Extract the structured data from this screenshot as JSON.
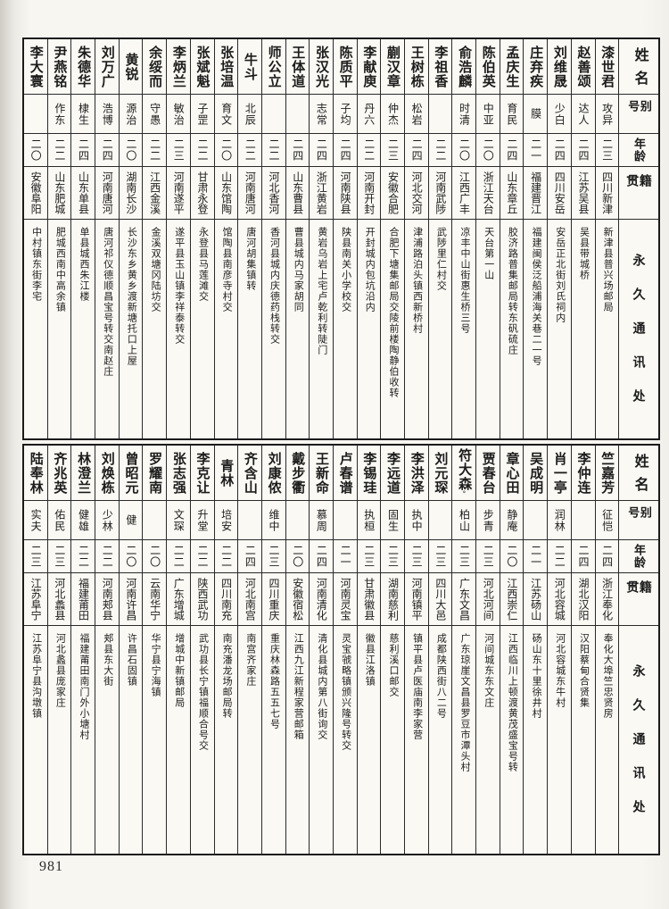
{
  "page_number": "981",
  "colors": {
    "ink": "#1b1b1b",
    "paper": "#f7f6f1"
  },
  "headers": {
    "name": "姓名",
    "alias": "别号",
    "age": "年龄",
    "native_place": "籍贯",
    "address": "永久通讯处"
  },
  "tables": [
    {
      "people": [
        {
          "name": "漆世君",
          "alias": "攻异",
          "age": "二三",
          "native_place": "四川新津",
          "address": "新津县普兴场邮局"
        },
        {
          "name": "赵善颂",
          "alias": "达人",
          "age": "二四",
          "native_place": "江苏吴县",
          "address": "吴县带城桥"
        },
        {
          "name": "刘维晟",
          "alias": "少白",
          "age": "二四",
          "native_place": "四川安岳",
          "address": "安岳正北街刘氏祠内"
        },
        {
          "name": "庄弃疾",
          "alias": "膜",
          "age": "二一",
          "native_place": "福建晋江",
          "address": "福建闽侯泛船浦海关巷二一号"
        },
        {
          "name": "孟庆生",
          "alias": "育民",
          "age": "二四",
          "native_place": "山东章丘",
          "address": "胶济路普集邮局转东矾硫庄"
        },
        {
          "name": "陈伯英",
          "alias": "中亚",
          "age": "二〇",
          "native_place": "浙江天台",
          "address": "天台第一山"
        },
        {
          "name": "俞浩麟",
          "alias": "时清",
          "age": "二〇",
          "native_place": "江西广丰",
          "address": "凉丰中山街惠生桥三号"
        },
        {
          "name": "李祖香",
          "alias": "",
          "age": "二二",
          "native_place": "河南武陟",
          "address": "武陟里仁村交"
        },
        {
          "name": "王树栋",
          "alias": "松岩",
          "age": "二四",
          "native_place": "河北交河",
          "address": "津浦路泊头镇西新桥村"
        },
        {
          "name": "蒯汉章",
          "alias": "仲杰",
          "age": "二三",
          "native_place": "安徽合肥",
          "address": "合肥下塘集邮局交陵前楼陶静伯收转"
        },
        {
          "name": "李献庾",
          "alias": "丹六",
          "age": "二二",
          "native_place": "河南开封",
          "address": "开封城内包坑沿内"
        },
        {
          "name": "陈质平",
          "alias": "子均",
          "age": "二四",
          "native_place": "河南陕县",
          "address": "陕县南关小学校交"
        },
        {
          "name": "张汉光",
          "alias": "志常",
          "age": "二四",
          "native_place": "浙江黄岩",
          "address": "黄岩乌岩上宅卢乾利转陡门"
        },
        {
          "name": "王体道",
          "alias": "",
          "age": "二四",
          "native_place": "山东曹县",
          "address": "曹县城内马家胡同"
        },
        {
          "name": "师公立",
          "alias": "",
          "age": "二二",
          "native_place": "河北香河",
          "address": "香河县城内庆德药栈转交"
        },
        {
          "name": "牛斗",
          "alias": "北辰",
          "age": "二二",
          "native_place": "河南唐河",
          "address": "唐河胡集镇转"
        },
        {
          "name": "张培温",
          "alias": "育文",
          "age": "二〇",
          "native_place": "山东馆陶",
          "address": "馆陶县南彦寺村交"
        },
        {
          "name": "张斌魁",
          "alias": "子罡",
          "age": "二二",
          "native_place": "甘肃永登",
          "address": "永登县马莲滩交"
        },
        {
          "name": "李炳兰",
          "alias": "敏治",
          "age": "二三",
          "native_place": "河南遂平",
          "address": "遂平县玉山镇李祥泰转交"
        },
        {
          "name": "余绥而",
          "alias": "守愚",
          "age": "二二",
          "native_place": "江西金溪",
          "address": "金溪双塘冈陆坊交"
        },
        {
          "name": "黄锐",
          "alias": "源治",
          "age": "二〇",
          "native_place": "湖南长沙",
          "address": "长沙东乡黄乡渡新塘托口上屋"
        },
        {
          "name": "刘万广",
          "alias": "浩博",
          "age": "二四",
          "native_place": "河南唐河",
          "address": "唐河祁仪德顺昌宝号转交南赵庄"
        },
        {
          "name": "朱德华",
          "alias": "棣生",
          "age": "二四",
          "native_place": "山东单县",
          "address": "单县城西朱江楼"
        },
        {
          "name": "尹燕铭",
          "alias": "作东",
          "age": "二二",
          "native_place": "山东肥城",
          "address": "肥城西南中高余镇"
        },
        {
          "name": "李大寰",
          "alias": "",
          "age": "二〇",
          "native_place": "安徽阜阳",
          "address": "中村镇东街李宅"
        }
      ]
    },
    {
      "people": [
        {
          "name": "竺嘉芳",
          "alias": "征恺",
          "age": "二四",
          "native_place": "浙江奉化",
          "address": "奉化大埠竺忠贤房"
        },
        {
          "name": "李仲连",
          "alias": "",
          "age": "二四",
          "native_place": "湖北汉阳",
          "address": "汉阳蔡甸合贤集"
        },
        {
          "name": "肖一亭",
          "alias": "润林",
          "age": "二二",
          "native_place": "河北容城",
          "address": "河北容城东牛村"
        },
        {
          "name": "吴成明",
          "alias": "",
          "age": "二一",
          "native_place": "江苏砀山",
          "address": "砀山东十里徐井村"
        },
        {
          "name": "章心田",
          "alias": "静庵",
          "age": "二〇",
          "native_place": "江西崇仁",
          "address": "江西临川上顿渡黄茂盛宝号转"
        },
        {
          "name": "贾春台",
          "alias": "步青",
          "age": "二三",
          "native_place": "河北河间",
          "address": "河间城东东文庄"
        },
        {
          "name": "符大森",
          "alias": "柏山",
          "age": "二三",
          "native_place": "广东文昌",
          "address": "广东琼崖文昌县罗豆市潭头村",
          "name_mark": "°"
        },
        {
          "name": "刘元琛",
          "alias": "",
          "age": "二三",
          "native_place": "四川大邑",
          "address": "成都陕西街八二号"
        },
        {
          "name": "李洪泽",
          "alias": "执中",
          "age": "二三",
          "native_place": "河南镇平",
          "address": "镇平县卢医庙南李家营"
        },
        {
          "name": "李远道",
          "alias": "固生",
          "age": "二三",
          "native_place": "湖南慈利",
          "address": "慈利溪口邮交"
        },
        {
          "name": "李锡珪",
          "alias": "执桓",
          "age": "二三",
          "native_place": "甘肃徽县",
          "address": "徽县江洛镇"
        },
        {
          "name": "卢春谱",
          "alias": "",
          "age": "二一",
          "native_place": "河南灵宝",
          "address": "灵宝虢略镇颁兴隆号转交"
        },
        {
          "name": "王新命",
          "alias": "慕周",
          "age": "二四",
          "native_place": "河南清化",
          "address": "清化县城内第八街询交"
        },
        {
          "name": "戴步衢",
          "alias": "",
          "age": "二〇",
          "native_place": "安徽宿松",
          "address": "江西九江新程家营邮箱"
        },
        {
          "name": "刘康侬",
          "alias": "维中",
          "age": "二三",
          "native_place": "四川重庆",
          "address": "重庆林森路五五七号"
        },
        {
          "name": "齐含山",
          "alias": "",
          "age": "二四",
          "native_place": "河北南宫",
          "address": "南宫齐家庄"
        },
        {
          "name": "青林",
          "alias": "培安",
          "age": "二二",
          "native_place": "四川南充",
          "address": "南充潘龙场邮局转"
        },
        {
          "name": "李克让",
          "alias": "升堂",
          "age": "二二",
          "native_place": "陕西武功",
          "address": "武功县长宁镇福顺合号交"
        },
        {
          "name": "张志强",
          "alias": "文琛",
          "age": "二二",
          "native_place": "广东增城",
          "address": "增城中新镇邮局"
        },
        {
          "name": "罗耀南",
          "alias": "",
          "age": "二〇",
          "native_place": "云南华宁",
          "address": "华宁县宁海镇"
        },
        {
          "name": "曾昭元",
          "alias": "健",
          "age": "二〇",
          "native_place": "河南许昌",
          "address": "许昌石固镇"
        },
        {
          "name": "刘焕栋",
          "alias": "少林",
          "age": "二二",
          "native_place": "河南郏县",
          "address": "郏县东大街"
        },
        {
          "name": "林澄兰",
          "alias": "健雄",
          "age": "二二",
          "native_place": "福建莆田",
          "address": "福建莆田南门外小塘村"
        },
        {
          "name": "齐兆英",
          "alias": "佑民",
          "age": "二三",
          "native_place": "河北蠡县",
          "address": "河北蠡县庞家庄"
        },
        {
          "name": "陆奉林",
          "alias": "实夫",
          "age": "二三",
          "native_place": "江苏阜宁",
          "address": "江苏阜宁县沟墩镇"
        }
      ]
    }
  ]
}
